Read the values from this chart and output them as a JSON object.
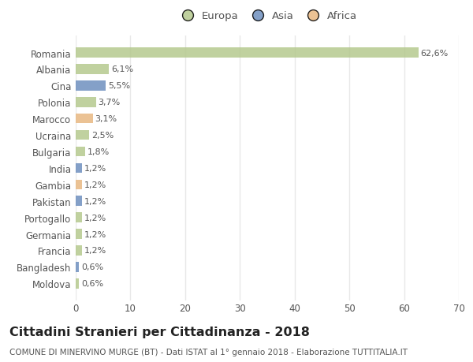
{
  "title": "Cittadini Stranieri per Cittadinanza - 2018",
  "subtitle": "COMUNE DI MINERVINO MURGE (BT) - Dati ISTAT al 1° gennaio 2018 - Elaborazione TUTTITALIA.IT",
  "categories": [
    "Romania",
    "Albania",
    "Cina",
    "Polonia",
    "Marocco",
    "Ucraina",
    "Bulgaria",
    "India",
    "Gambia",
    "Pakistan",
    "Portogallo",
    "Germania",
    "Francia",
    "Bangladesh",
    "Moldova"
  ],
  "values": [
    62.6,
    6.1,
    5.5,
    3.7,
    3.1,
    2.5,
    1.8,
    1.2,
    1.2,
    1.2,
    1.2,
    1.2,
    1.2,
    0.6,
    0.6
  ],
  "labels": [
    "62,6%",
    "6,1%",
    "5,5%",
    "3,7%",
    "3,1%",
    "2,5%",
    "1,8%",
    "1,2%",
    "1,2%",
    "1,2%",
    "1,2%",
    "1,2%",
    "1,2%",
    "0,6%",
    "0,6%"
  ],
  "continents": [
    "Europa",
    "Europa",
    "Asia",
    "Europa",
    "Africa",
    "Europa",
    "Europa",
    "Asia",
    "Africa",
    "Asia",
    "Europa",
    "Europa",
    "Europa",
    "Asia",
    "Europa"
  ],
  "continent_colors": {
    "Europa": "#b5c98e",
    "Asia": "#6e8fbf",
    "Africa": "#e8b882"
  },
  "legend_entries": [
    "Europa",
    "Asia",
    "Africa"
  ],
  "legend_colors": [
    "#b5c98e",
    "#6e8fbf",
    "#e8b882"
  ],
  "xlim": [
    0,
    70
  ],
  "xticks": [
    0,
    10,
    20,
    30,
    40,
    50,
    60,
    70
  ],
  "background_color": "#ffffff",
  "grid_color": "#e8e8e8",
  "title_fontsize": 11.5,
  "subtitle_fontsize": 7.5,
  "label_fontsize": 8,
  "tick_fontsize": 8.5,
  "legend_fontsize": 9.5
}
